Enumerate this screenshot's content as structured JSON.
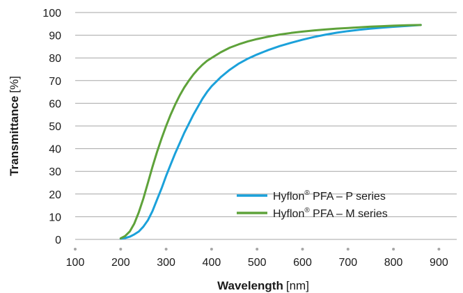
{
  "chart_data": {
    "type": "line",
    "xlabel": "Wavelength",
    "xlabel_unit": "[nm]",
    "ylabel": "Transmittance",
    "ylabel_unit": "[%]",
    "xlim": [
      100,
      900
    ],
    "ylim": [
      0,
      100
    ],
    "x_ticks": [
      100,
      200,
      300,
      400,
      500,
      600,
      700,
      800,
      900
    ],
    "y_ticks": [
      0,
      10,
      20,
      30,
      40,
      50,
      60,
      70,
      80,
      90,
      100
    ],
    "grid": {
      "horizontal": true,
      "vertical": false
    },
    "legend_position": "bottom-right",
    "series": [
      {
        "name": "Hyflon® PFA – P series",
        "name_main": "Hyflon",
        "name_sup": "®",
        "name_rest": " PFA – P series",
        "color": "#1ba1da",
        "x": [
          200,
          210,
          220,
          230,
          240,
          250,
          260,
          270,
          280,
          290,
          300,
          310,
          320,
          330,
          340,
          350,
          360,
          370,
          380,
          390,
          400,
          420,
          440,
          460,
          480,
          500,
          525,
          550,
          575,
          600,
          625,
          650,
          675,
          700,
          725,
          750,
          775,
          800,
          830,
          860
        ],
        "y": [
          0.3,
          0.6,
          1.2,
          2.2,
          3.5,
          5.6,
          8.5,
          12.5,
          17.5,
          22.5,
          28,
          33,
          38,
          42.5,
          47,
          51,
          55,
          58.5,
          62,
          65,
          67.5,
          71.5,
          74.8,
          77.5,
          79.7,
          81.5,
          83.5,
          85.2,
          86.7,
          88,
          89.2,
          90.2,
          91.1,
          91.8,
          92.4,
          92.9,
          93.3,
          93.7,
          94.1,
          94.5
        ]
      },
      {
        "name": "Hyflon® PFA – M series",
        "name_main": "Hyflon",
        "name_sup": "®",
        "name_rest": " PFA – M series",
        "color": "#5ea23a",
        "x": [
          200,
          210,
          220,
          230,
          240,
          250,
          260,
          270,
          280,
          290,
          300,
          310,
          320,
          330,
          340,
          350,
          360,
          370,
          380,
          390,
          400,
          420,
          440,
          460,
          480,
          500,
          525,
          550,
          575,
          600,
          625,
          650,
          675,
          700,
          725,
          750,
          775,
          800,
          830,
          860
        ],
        "y": [
          0.5,
          1.5,
          3.5,
          7,
          12,
          18,
          25,
          32,
          38.5,
          44.5,
          50,
          55,
          59.5,
          63.5,
          67,
          70,
          72.7,
          75,
          77,
          78.7,
          80,
          82.5,
          84.5,
          86,
          87.3,
          88.3,
          89.4,
          90.3,
          91,
          91.6,
          92.1,
          92.5,
          92.9,
          93.2,
          93.5,
          93.8,
          94,
          94.2,
          94.4,
          94.5
        ]
      }
    ]
  }
}
